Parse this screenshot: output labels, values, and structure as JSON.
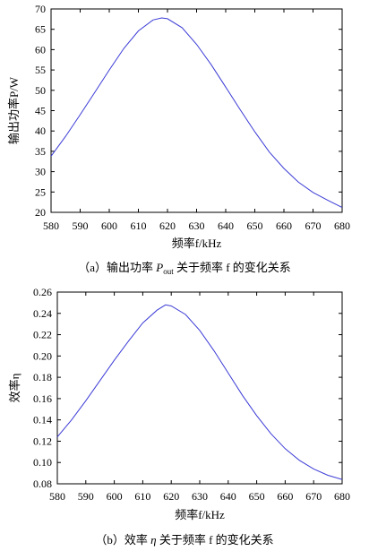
{
  "chart_data": [
    {
      "type": "line",
      "xlabel": "频率f/kHz",
      "ylabel": "输出功率P/W",
      "xlim": [
        580,
        680
      ],
      "ylim": [
        20,
        70
      ],
      "xticks": [
        "580",
        "590",
        "600",
        "610",
        "620",
        "630",
        "640",
        "650",
        "660",
        "670",
        "680"
      ],
      "yticks": [
        "20",
        "25",
        "30",
        "35",
        "40",
        "45",
        "50",
        "55",
        "60",
        "65",
        "70"
      ],
      "grid": false,
      "series": [
        {
          "color": "#3b3bd6",
          "x": [
            580,
            585,
            590,
            595,
            600,
            605,
            610,
            615,
            618,
            620,
            625,
            630,
            635,
            640,
            645,
            650,
            655,
            660,
            665,
            670,
            675,
            680
          ],
          "y": [
            33.8,
            38.7,
            44.0,
            49.5,
            55.0,
            60.3,
            64.6,
            67.3,
            67.8,
            67.6,
            65.4,
            61.3,
            56.3,
            50.8,
            45.2,
            39.8,
            34.8,
            30.8,
            27.4,
            24.9,
            23.0,
            21.2
          ]
        }
      ],
      "caption": {
        "prefix": "（a）输出功率 ",
        "var": "P",
        "sub": "out",
        "suffix": " 关于频率 f 的变化关系"
      }
    },
    {
      "type": "line",
      "xlabel": "频率f/kHz",
      "ylabel": "效率η",
      "xlim": [
        580,
        680
      ],
      "ylim": [
        0.08,
        0.26
      ],
      "xticks": [
        "580",
        "590",
        "600",
        "610",
        "620",
        "630",
        "640",
        "650",
        "660",
        "670",
        "680"
      ],
      "yticks": [
        "0.08",
        "0.10",
        "0.12",
        "0.14",
        "0.16",
        "0.18",
        "0.20",
        "0.22",
        "0.24",
        "0.26"
      ],
      "grid": false,
      "series": [
        {
          "color": "#3b3bd6",
          "x": [
            580,
            585,
            590,
            595,
            600,
            605,
            610,
            615,
            618,
            620,
            625,
            630,
            635,
            640,
            645,
            650,
            655,
            660,
            665,
            670,
            675,
            680
          ],
          "y": [
            0.124,
            0.14,
            0.158,
            0.177,
            0.196,
            0.214,
            0.231,
            0.243,
            0.248,
            0.247,
            0.239,
            0.224,
            0.205,
            0.184,
            0.163,
            0.144,
            0.127,
            0.113,
            0.102,
            0.094,
            0.088,
            0.084
          ]
        }
      ],
      "caption": {
        "prefix": "（b）效率 ",
        "var": "η",
        "sub": "",
        "suffix": " 关于频率 f 的变化关系"
      }
    }
  ]
}
